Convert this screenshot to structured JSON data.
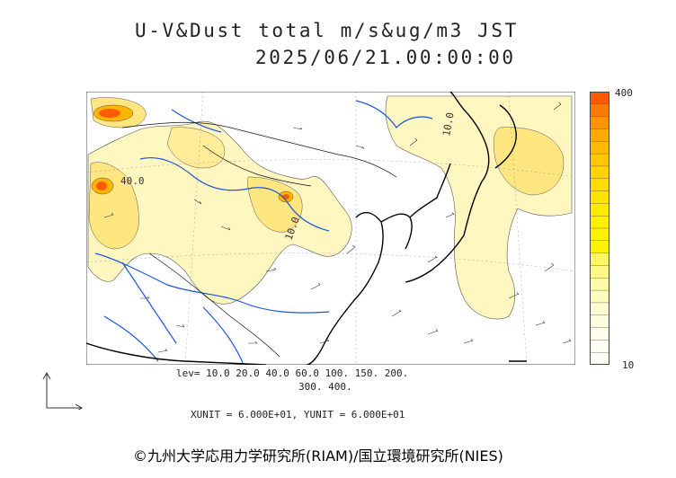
{
  "header": {
    "title": "U-V&Dust total m/s&ug/m3 JST",
    "datetime": "2025/06/21.00:00:00"
  },
  "colorbar": {
    "max_label": "400",
    "min_label": "10",
    "colors": [
      "#ff5a00",
      "#ff7a00",
      "#ff9400",
      "#ffa800",
      "#ffbb00",
      "#ffc800",
      "#ffd400",
      "#ffdd00",
      "#ffe400",
      "#ffea00",
      "#ffef00",
      "#fff200",
      "#fff400",
      "#fff660",
      "#fff78a",
      "#fff9a8",
      "#fffac0",
      "#fffbd2",
      "#fffce0",
      "#fffdec",
      "#fffef4",
      "#fffff8"
    ]
  },
  "levels": {
    "line1": "lev= 10.0 20.0 40.0 60.0 100. 150. 200.",
    "line2": "300. 400."
  },
  "units_text": "XUNIT = 6.000E+01, YUNIT = 6.000E+01",
  "map_labels": {
    "contour_a": "40.0",
    "contour_b": "10.0",
    "contour_c": "10.0"
  },
  "credit": "©九州大学応用力学研究所(RIAM)/国立環境研究所(NIES)",
  "map_colors": {
    "coastline": "#000000",
    "rivers": "#1a55e0",
    "borders": "#111111",
    "dust_light": "#fff6c0",
    "dust_mid": "#ffe680",
    "dust_high": "#ffb400",
    "dust_peak": "#ff5a00"
  }
}
